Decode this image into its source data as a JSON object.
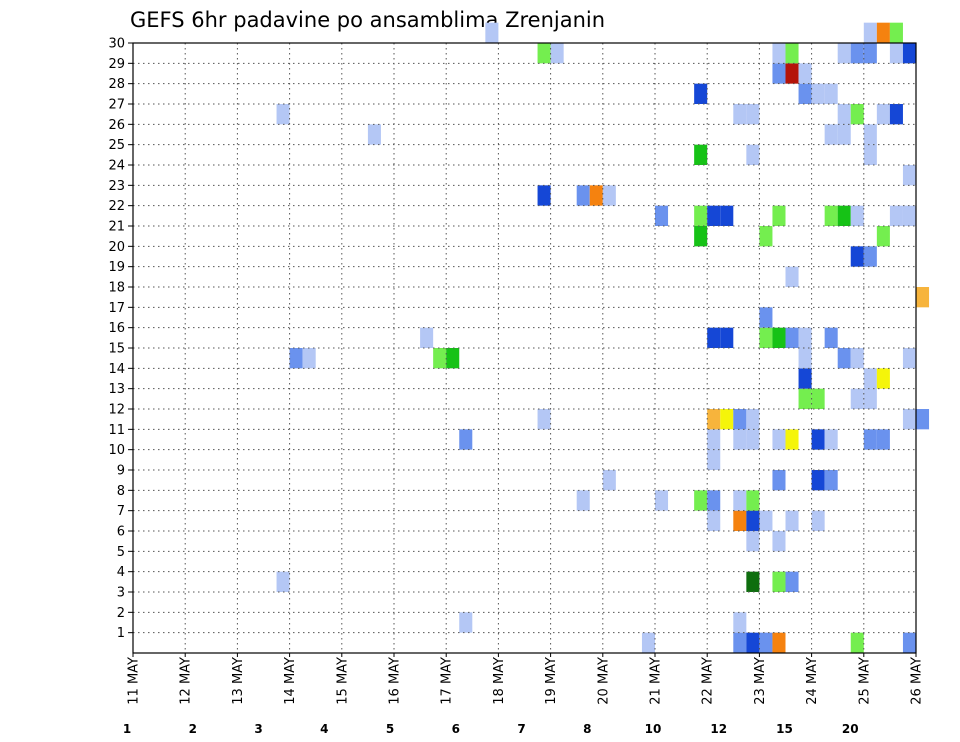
{
  "chart_data": {
    "type": "heatmap",
    "title": "GEFS 6hr padavine po ansamblima Zrenjanin",
    "x_tick_labels": [
      "11 MAY",
      "12 MAY",
      "13 MAY",
      "14 MAY",
      "15 MAY",
      "16 MAY",
      "17 MAY",
      "18 MAY",
      "19 MAY",
      "20 MAY",
      "21 MAY",
      "22 MAY",
      "23 MAY",
      "24 MAY",
      "25 MAY",
      "26 MAY"
    ],
    "y_tick_labels": [
      "1",
      "2",
      "3",
      "4",
      "5",
      "6",
      "7",
      "8",
      "9",
      "10",
      "11",
      "12",
      "13",
      "14",
      "15",
      "16",
      "17",
      "18",
      "19",
      "20",
      "21",
      "22",
      "23",
      "24",
      "25",
      "26",
      "27",
      "28",
      "29",
      "30"
    ],
    "xlim": [
      "11 MAY",
      "26 MAY"
    ],
    "ylim": [
      0,
      30
    ],
    "time_step_hours": 6,
    "grid": true,
    "legend_position": "bottom",
    "legend_labels": [
      "1",
      "2",
      "3",
      "4",
      "5",
      "6",
      "7",
      "8",
      "10",
      "12",
      "15",
      "20"
    ],
    "legend_colors": [
      "#b4c7f5",
      "#6a92ee",
      "#1547d6",
      "#74ee4f",
      "#16c216",
      "#0e6e0e",
      "#f5f50a",
      "#f7b43c",
      "#f5820f",
      "#e63c0f",
      "#b4140a",
      "#7a0808"
    ],
    "level_colors": {
      "1": "#b4c7f5",
      "2": "#6a92ee",
      "3": "#1547d6",
      "4": "#74ee4f",
      "5": "#16c216",
      "6": "#0e6e0e",
      "7": "#f5f50a",
      "8": "#f7b43c",
      "9": "#f5820f",
      "10": "#e63c0f",
      "11": "#b4140a",
      "12": "#7a0808"
    },
    "cells": [
      [
        6.25,
        1,
        1
      ],
      [
        11.5,
        1,
        1
      ],
      [
        2.75,
        3,
        1
      ],
      [
        11.75,
        3,
        6
      ],
      [
        12.25,
        3,
        4
      ],
      [
        12.5,
        3,
        2
      ],
      [
        11.75,
        5,
        1
      ],
      [
        12.25,
        5,
        1
      ],
      [
        11.5,
        6,
        9
      ],
      [
        11.75,
        6,
        8
      ],
      [
        12,
        6,
        1
      ],
      [
        11,
        6,
        1
      ],
      [
        11.75,
        6,
        3
      ],
      [
        12.5,
        6,
        1
      ],
      [
        13,
        6,
        1
      ],
      [
        8.5,
        7,
        1
      ],
      [
        10,
        7,
        1
      ],
      [
        10.75,
        7,
        4
      ],
      [
        11,
        7,
        2
      ],
      [
        11.5,
        7,
        1
      ],
      [
        11.75,
        7,
        4
      ],
      [
        9,
        8,
        1
      ],
      [
        12.25,
        8,
        2
      ],
      [
        13,
        8,
        3
      ],
      [
        13.25,
        8,
        2
      ],
      [
        11,
        9,
        1
      ],
      [
        6.25,
        10,
        2
      ],
      [
        11,
        10,
        1
      ],
      [
        11.5,
        10,
        1
      ],
      [
        11.75,
        10,
        1
      ],
      [
        12.25,
        10,
        1
      ],
      [
        12.5,
        10,
        7
      ],
      [
        13,
        10,
        3
      ],
      [
        13.25,
        10,
        1
      ],
      [
        14,
        10,
        2
      ],
      [
        14.25,
        10,
        2
      ],
      [
        7.75,
        11,
        1
      ],
      [
        11,
        11,
        8
      ],
      [
        11.25,
        11,
        7
      ],
      [
        11.5,
        11,
        2
      ],
      [
        11.75,
        11,
        1
      ],
      [
        14.75,
        11,
        1
      ],
      [
        15,
        11,
        2
      ],
      [
        12.75,
        12,
        4
      ],
      [
        13,
        12,
        4
      ],
      [
        13.75,
        12,
        1
      ],
      [
        14,
        12,
        1
      ],
      [
        12.75,
        13,
        3
      ],
      [
        14,
        13,
        1
      ],
      [
        14.25,
        13,
        7
      ],
      [
        3,
        14,
        2
      ],
      [
        3.25,
        14,
        1
      ],
      [
        5.75,
        14,
        4
      ],
      [
        6,
        14,
        5
      ],
      [
        12.75,
        14,
        1
      ],
      [
        13.5,
        14,
        2
      ],
      [
        13.75,
        14,
        1
      ],
      [
        14.75,
        14,
        1
      ],
      [
        5.5,
        15,
        1
      ],
      [
        11,
        15,
        3
      ],
      [
        11.25,
        15,
        3
      ],
      [
        12,
        15,
        4
      ],
      [
        12.25,
        15,
        5
      ],
      [
        12.5,
        15,
        2
      ],
      [
        12.75,
        15,
        1
      ],
      [
        13.25,
        15,
        2
      ],
      [
        12,
        16,
        2
      ],
      [
        15,
        17,
        8
      ],
      [
        12.5,
        18,
        1
      ],
      [
        13.75,
        19,
        3
      ],
      [
        14,
        19,
        2
      ],
      [
        10.75,
        20,
        5
      ],
      [
        12,
        20,
        4
      ],
      [
        14.25,
        20,
        4
      ],
      [
        10,
        21,
        2
      ],
      [
        10.75,
        21,
        4
      ],
      [
        11,
        21,
        3
      ],
      [
        11.25,
        21,
        3
      ],
      [
        12.25,
        21,
        4
      ],
      [
        13.25,
        21,
        4
      ],
      [
        13.5,
        21,
        5
      ],
      [
        13.75,
        21,
        1
      ],
      [
        14.5,
        21,
        1
      ],
      [
        14.75,
        21,
        1
      ],
      [
        7.75,
        22,
        3
      ],
      [
        8.5,
        22,
        2
      ],
      [
        8.75,
        22,
        9
      ],
      [
        9,
        22,
        1
      ],
      [
        14.75,
        23,
        1
      ],
      [
        10.75,
        24,
        5
      ],
      [
        11.75,
        24,
        1
      ],
      [
        14,
        24,
        1
      ],
      [
        4.5,
        25,
        1
      ],
      [
        13.25,
        25,
        1
      ],
      [
        13.5,
        25,
        1
      ],
      [
        14,
        25,
        1
      ],
      [
        2.75,
        26,
        1
      ],
      [
        11.5,
        26,
        1
      ],
      [
        11.75,
        26,
        1
      ],
      [
        13.5,
        26,
        1
      ],
      [
        13.75,
        26,
        4
      ],
      [
        14.25,
        26,
        1
      ],
      [
        14.5,
        26,
        3
      ],
      [
        10.75,
        27,
        3
      ],
      [
        12.75,
        27,
        2
      ],
      [
        13,
        27,
        1
      ],
      [
        13.25,
        27,
        1
      ],
      [
        12.25,
        28,
        2
      ],
      [
        12.5,
        28,
        11
      ],
      [
        12.75,
        28,
        1
      ],
      [
        7.75,
        29,
        4
      ],
      [
        8,
        29,
        1
      ],
      [
        12.25,
        29,
        1
      ],
      [
        12.5,
        29,
        4
      ],
      [
        13.5,
        29,
        1
      ],
      [
        13.75,
        29,
        2
      ],
      [
        14,
        29,
        2
      ],
      [
        14.5,
        29,
        1
      ],
      [
        14.75,
        29,
        3
      ],
      [
        6.75,
        30,
        1
      ],
      [
        14,
        30,
        1
      ],
      [
        14.25,
        30,
        9
      ],
      [
        14.5,
        30,
        4
      ],
      [
        9.75,
        0,
        1
      ],
      [
        11.5,
        0,
        2
      ],
      [
        11.75,
        0,
        3
      ],
      [
        12,
        0,
        2
      ],
      [
        12.25,
        0,
        9
      ],
      [
        13.75,
        0,
        4
      ],
      [
        14.75,
        0,
        2
      ]
    ]
  }
}
